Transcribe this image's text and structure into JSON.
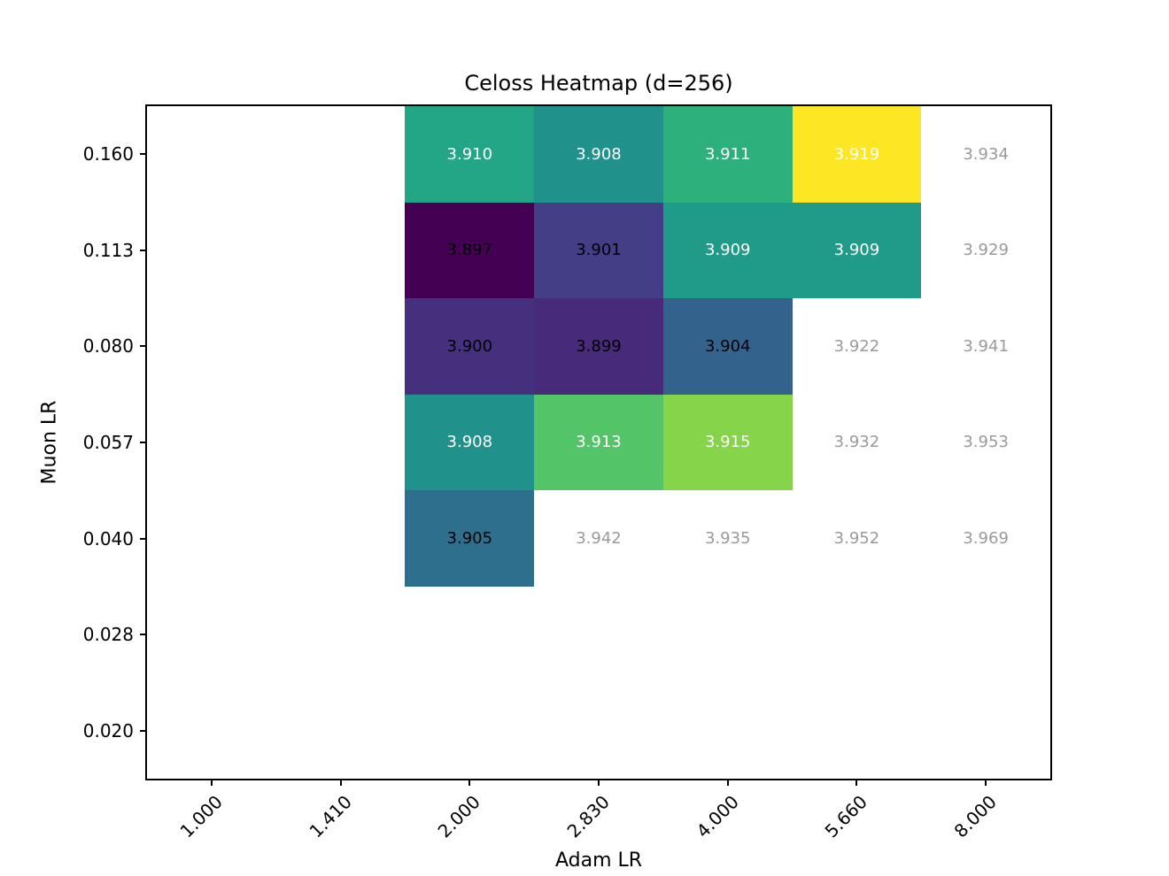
{
  "chart_data": {
    "type": "heatmap",
    "title": "Celoss Heatmap (d=256)",
    "xlabel": "Adam LR",
    "ylabel": "Muon LR",
    "x_categories": [
      "1.000",
      "1.410",
      "2.000",
      "2.830",
      "4.000",
      "5.660",
      "8.000"
    ],
    "y_categories": [
      "0.160",
      "0.113",
      "0.080",
      "0.057",
      "0.040",
      "0.028",
      "0.020"
    ],
    "colormap": "viridis",
    "value_range": [
      3.897,
      3.919
    ],
    "colors": {
      "background": "#ffffff",
      "frame": "#000000",
      "uncolored_text": "#9a9a9a",
      "light_text": "#ffffff",
      "dark_text": "#000000"
    },
    "cells": [
      {
        "row": "0.160",
        "col": "2.000",
        "value": "3.910",
        "bg": "#22a685",
        "text": "#ffffff"
      },
      {
        "row": "0.160",
        "col": "2.830",
        "value": "3.908",
        "bg": "#21918c",
        "text": "#ffffff"
      },
      {
        "row": "0.160",
        "col": "4.000",
        "value": "3.911",
        "bg": "#2eb07d",
        "text": "#ffffff"
      },
      {
        "row": "0.160",
        "col": "5.660",
        "value": "3.919",
        "bg": "#fde725",
        "text": "#ffffff"
      },
      {
        "row": "0.160",
        "col": "8.000",
        "value": "3.934",
        "bg": "#ffffff",
        "text": "#9a9a9a"
      },
      {
        "row": "0.113",
        "col": "2.000",
        "value": "3.897",
        "bg": "#440154",
        "text": "#000000"
      },
      {
        "row": "0.113",
        "col": "2.830",
        "value": "3.901",
        "bg": "#433e85",
        "text": "#000000"
      },
      {
        "row": "0.113",
        "col": "4.000",
        "value": "3.909",
        "bg": "#219b89",
        "text": "#ffffff"
      },
      {
        "row": "0.113",
        "col": "5.660",
        "value": "3.909",
        "bg": "#219b89",
        "text": "#ffffff"
      },
      {
        "row": "0.113",
        "col": "8.000",
        "value": "3.929",
        "bg": "#ffffff",
        "text": "#9a9a9a"
      },
      {
        "row": "0.080",
        "col": "2.000",
        "value": "3.900",
        "bg": "#45307d",
        "text": "#000000"
      },
      {
        "row": "0.080",
        "col": "2.830",
        "value": "3.899",
        "bg": "#472a7a",
        "text": "#000000"
      },
      {
        "row": "0.080",
        "col": "4.000",
        "value": "3.904",
        "bg": "#33638d",
        "text": "#000000"
      },
      {
        "row": "0.080",
        "col": "5.660",
        "value": "3.922",
        "bg": "#ffffff",
        "text": "#9a9a9a"
      },
      {
        "row": "0.080",
        "col": "8.000",
        "value": "3.941",
        "bg": "#ffffff",
        "text": "#9a9a9a"
      },
      {
        "row": "0.057",
        "col": "2.000",
        "value": "3.908",
        "bg": "#21918c",
        "text": "#ffffff"
      },
      {
        "row": "0.057",
        "col": "2.830",
        "value": "3.913",
        "bg": "#53c468",
        "text": "#ffffff"
      },
      {
        "row": "0.057",
        "col": "4.000",
        "value": "3.915",
        "bg": "#86d449",
        "text": "#ffffff"
      },
      {
        "row": "0.057",
        "col": "5.660",
        "value": "3.932",
        "bg": "#ffffff",
        "text": "#9a9a9a"
      },
      {
        "row": "0.057",
        "col": "8.000",
        "value": "3.953",
        "bg": "#ffffff",
        "text": "#9a9a9a"
      },
      {
        "row": "0.040",
        "col": "2.000",
        "value": "3.905",
        "bg": "#2e6f8e",
        "text": "#000000"
      },
      {
        "row": "0.040",
        "col": "2.830",
        "value": "3.942",
        "bg": "#ffffff",
        "text": "#9a9a9a"
      },
      {
        "row": "0.040",
        "col": "4.000",
        "value": "3.935",
        "bg": "#ffffff",
        "text": "#9a9a9a"
      },
      {
        "row": "0.040",
        "col": "5.660",
        "value": "3.952",
        "bg": "#ffffff",
        "text": "#9a9a9a"
      },
      {
        "row": "0.040",
        "col": "8.000",
        "value": "3.969",
        "bg": "#ffffff",
        "text": "#9a9a9a"
      }
    ]
  }
}
